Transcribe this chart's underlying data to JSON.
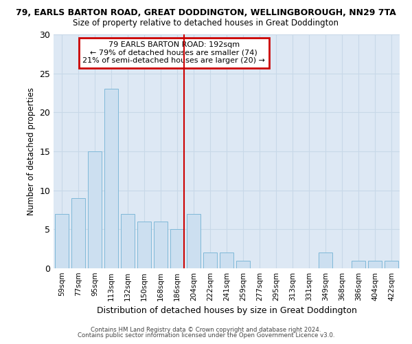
{
  "title_line1": "79, EARLS BARTON ROAD, GREAT DODDINGTON, WELLINGBOROUGH, NN29 7TA",
  "title_line2": "Size of property relative to detached houses in Great Doddington",
  "xlabel": "Distribution of detached houses by size in Great Doddington",
  "ylabel": "Number of detached properties",
  "categories": [
    "59sqm",
    "77sqm",
    "95sqm",
    "113sqm",
    "132sqm",
    "150sqm",
    "168sqm",
    "186sqm",
    "204sqm",
    "222sqm",
    "241sqm",
    "259sqm",
    "277sqm",
    "295sqm",
    "313sqm",
    "331sqm",
    "349sqm",
    "368sqm",
    "386sqm",
    "404sqm",
    "422sqm"
  ],
  "values": [
    7,
    9,
    15,
    23,
    7,
    6,
    6,
    5,
    7,
    2,
    2,
    1,
    0,
    0,
    0,
    0,
    2,
    0,
    1,
    1,
    1
  ],
  "bar_color": "#ccdff0",
  "bar_edge_color": "#7fb8d8",
  "vline_color": "#cc0000",
  "annotation_title": "79 EARLS BARTON ROAD: 192sqm",
  "annotation_line2": "← 79% of detached houses are smaller (74)",
  "annotation_line3": "21% of semi-detached houses are larger (20) →",
  "annotation_box_color": "#ffffff",
  "annotation_box_edge": "#cc0000",
  "ylim": [
    0,
    30
  ],
  "yticks": [
    0,
    5,
    10,
    15,
    20,
    25,
    30
  ],
  "grid_color": "#c8d8e8",
  "background_color": "#dde8f4",
  "fig_background": "#ffffff",
  "footer_line1": "Contains HM Land Registry data © Crown copyright and database right 2024.",
  "footer_line2": "Contains public sector information licensed under the Open Government Licence v3.0."
}
